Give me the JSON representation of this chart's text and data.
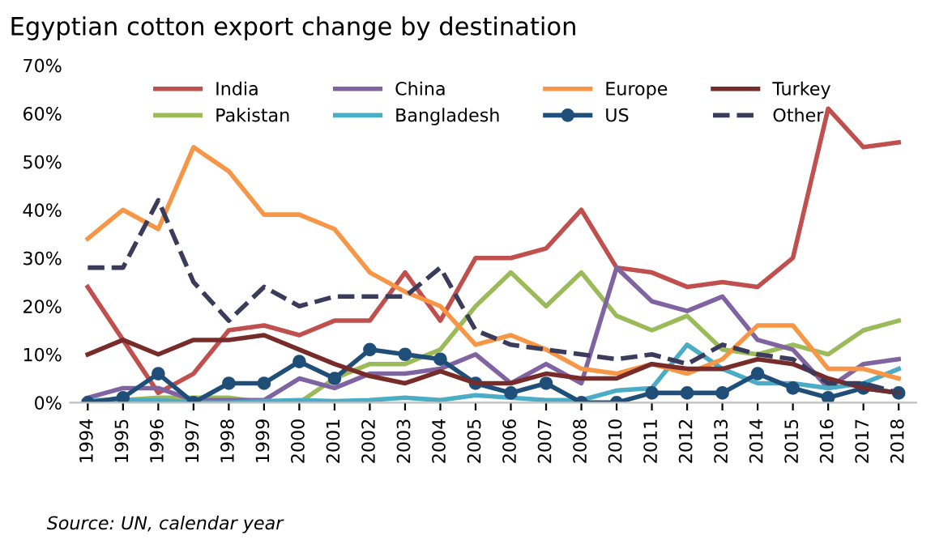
{
  "chart_data": {
    "type": "line",
    "title": "Egyptian cotton export change by destination",
    "categories": [
      "1994",
      "1995",
      "1996",
      "1997",
      "1998",
      "1999",
      "2000",
      "2001",
      "2002",
      "2003",
      "2004",
      "2005",
      "2006",
      "2007",
      "2008",
      "2010",
      "2011",
      "2012",
      "2013",
      "2014",
      "2015",
      "2016",
      "2017",
      "2018"
    ],
    "series": [
      {
        "name": "India",
        "color": "#c0504d",
        "values": [
          24,
          13,
          2,
          6,
          15,
          16,
          14,
          17,
          17,
          27,
          17,
          30,
          30,
          32,
          40,
          28,
          27,
          24,
          25,
          24,
          30,
          61,
          53,
          54
        ]
      },
      {
        "name": "Pakistan",
        "color": "#9bbb59",
        "values": [
          0,
          0.5,
          1,
          1,
          1,
          0,
          0,
          5,
          8,
          8,
          11,
          20,
          27,
          20,
          27,
          18,
          15,
          18,
          11,
          10,
          12,
          10,
          15,
          17
        ]
      },
      {
        "name": "China",
        "color": "#8064a2",
        "values": [
          1,
          3,
          3,
          0.5,
          0.5,
          0.5,
          5,
          3,
          6,
          6,
          7,
          10,
          4,
          8,
          4,
          28,
          21,
          19,
          22,
          13,
          11,
          3,
          8,
          9
        ]
      },
      {
        "name": "Bangladesh",
        "color": "#4bacc6",
        "values": [
          0.5,
          0.5,
          0.5,
          0,
          0,
          0.3,
          0.5,
          0.3,
          0.5,
          1,
          0.5,
          1.5,
          1,
          0.5,
          0.5,
          2.5,
          3,
          12,
          7,
          4,
          4,
          3,
          4,
          7
        ]
      },
      {
        "name": "Europe",
        "color": "#f79646",
        "values": [
          34,
          40,
          36,
          53,
          48,
          39,
          39,
          36,
          27,
          23,
          20,
          12,
          14,
          11,
          7,
          6,
          8,
          6,
          9,
          16,
          16,
          7,
          7,
          5
        ]
      },
      {
        "name": "US",
        "color": "#1f4e79",
        "marker": "circle",
        "values": [
          0,
          1,
          6,
          0,
          4,
          4,
          8.5,
          5,
          11,
          10,
          9,
          4,
          2,
          4,
          0,
          0,
          2,
          2,
          2,
          6,
          3,
          1,
          3,
          2
        ]
      },
      {
        "name": "Turkey",
        "color": "#772c2a",
        "values": [
          10,
          13,
          10,
          13,
          13,
          14,
          11,
          8,
          5.5,
          4,
          6.5,
          4,
          4,
          6,
          5,
          5,
          8,
          7,
          7,
          9,
          8,
          5,
          3,
          2
        ]
      },
      {
        "name": "Other",
        "color": "#3b3b5b",
        "line_style": "dashed",
        "values": [
          28,
          28,
          42,
          25,
          17,
          24,
          20,
          22,
          22,
          22,
          28,
          15,
          12,
          11,
          10,
          9,
          10,
          8,
          12,
          10,
          9,
          4,
          4,
          2
        ]
      }
    ],
    "ylim": [
      0,
      70
    ],
    "yticks": [
      {
        "value": 0,
        "label": "0%"
      },
      {
        "value": 10,
        "label": "10%"
      },
      {
        "value": 20,
        "label": "20%"
      },
      {
        "value": 30,
        "label": "30%"
      },
      {
        "value": 40,
        "label": "40%"
      },
      {
        "value": 50,
        "label": "50%"
      },
      {
        "value": 60,
        "label": "60%"
      },
      {
        "value": 70,
        "label": "70%"
      }
    ],
    "grid": false,
    "legend": "top",
    "annotations": [
      "Source: UN, calendar year"
    ]
  }
}
